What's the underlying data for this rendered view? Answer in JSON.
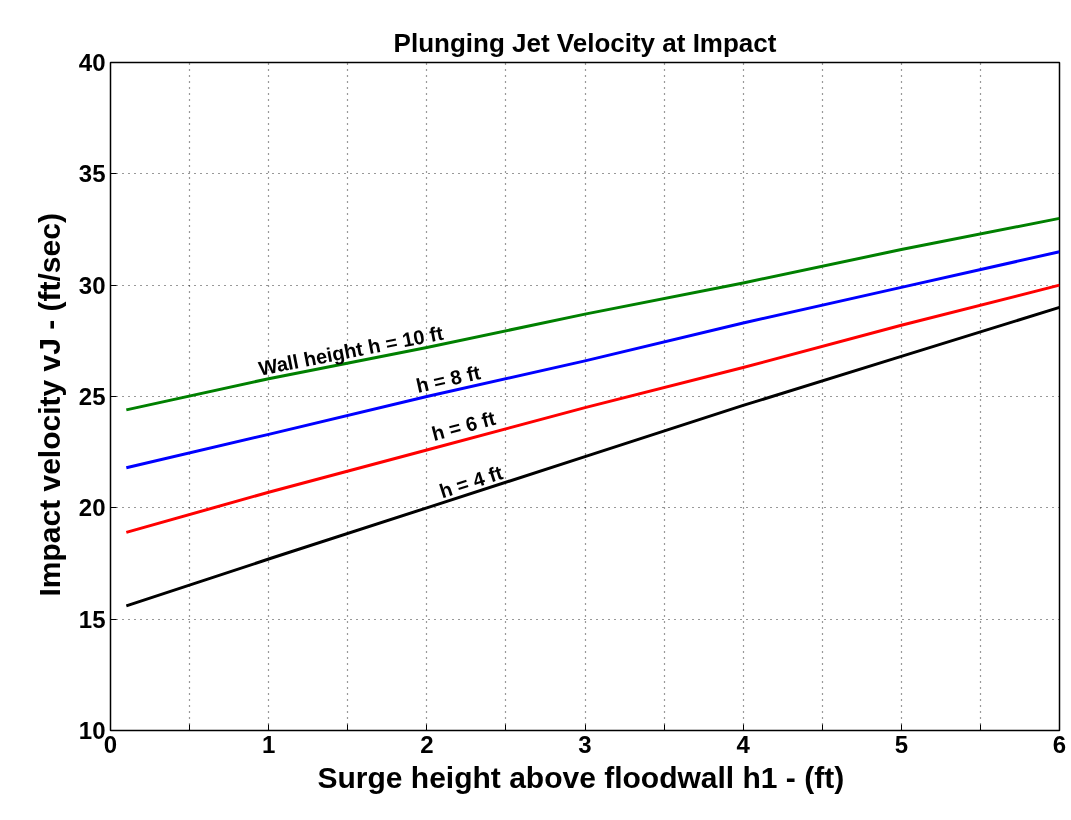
{
  "chart_data": {
    "type": "line",
    "title": "Plunging Jet Velocity at Impact",
    "xlabel": "Surge height above floodwall  h1 - (ft)",
    "ylabel": "Impact velocity   vJ - (ft/sec)",
    "x": [
      0.1,
      1,
      2,
      3,
      4,
      5,
      6
    ],
    "series": [
      {
        "color": "#008000",
        "values": [
          24.4,
          25.8,
          27.2,
          28.7,
          30.1,
          31.6,
          33.0
        ]
      },
      {
        "color": "#0000ff",
        "values": [
          21.8,
          23.3,
          25.0,
          26.6,
          28.3,
          29.9,
          31.5
        ]
      },
      {
        "color": "#ff0000",
        "values": [
          18.9,
          20.7,
          22.6,
          24.5,
          26.3,
          28.2,
          30.0
        ]
      },
      {
        "color": "#000000",
        "values": [
          15.6,
          17.7,
          20.0,
          22.3,
          24.6,
          26.8,
          29.0
        ]
      }
    ],
    "annotations": [
      {
        "text": "Wall height  h = 10 ft",
        "x": 1.55,
        "y": 26.6
      },
      {
        "text": "h = 8 ft",
        "x": 2.15,
        "y": 25.3
      },
      {
        "text": "h = 6 ft",
        "x": 2.25,
        "y": 23.2
      },
      {
        "text": "h = 4 ft",
        "x": 2.3,
        "y": 20.7
      }
    ],
    "xlim": [
      0,
      6
    ],
    "ylim": [
      10,
      40
    ],
    "xticks": [
      0,
      {
        "value": 0.5,
        "label": null
      },
      1,
      {
        "value": 1.5,
        "label": null
      },
      2,
      {
        "value": 2.5,
        "label": null
      },
      3,
      {
        "value": 3.5,
        "label": null
      },
      4,
      {
        "value": 4.5,
        "label": null
      },
      5,
      {
        "value": 5.5,
        "label": null
      },
      6
    ],
    "yticks": [
      10,
      15,
      20,
      25,
      30,
      35,
      40
    ],
    "grid": true,
    "marker": "none",
    "line_style": "solid"
  }
}
